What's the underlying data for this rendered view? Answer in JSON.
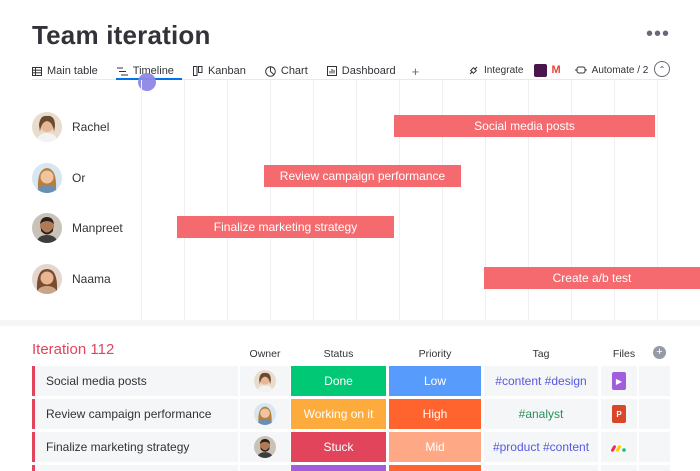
{
  "header": {
    "title": "Team iteration",
    "more_icon": "ellipsis-icon"
  },
  "tabs": [
    {
      "label": "Main table",
      "icon": "table-icon"
    },
    {
      "label": "Timeline",
      "icon": "timeline-icon",
      "active": true
    },
    {
      "label": "Kanban",
      "icon": "kanban-icon"
    },
    {
      "label": "Chart",
      "icon": "chart-icon"
    },
    {
      "label": "Dashboard",
      "icon": "dashboard-icon"
    }
  ],
  "add_view": "+",
  "toolbar": {
    "integrate_label": "Integrate",
    "automate_label": "Automate / 2"
  },
  "timeline": {
    "people": [
      {
        "name": "Rachel",
        "task": "Social media posts"
      },
      {
        "name": "Or",
        "task": "Review campaign performance"
      },
      {
        "name": "Manpreet",
        "task": "Finalize marketing strategy"
      },
      {
        "name": "Naama",
        "task": "Create a/b test"
      }
    ]
  },
  "group": {
    "title": "Iteration 112",
    "title_color": "#e2445c",
    "columns": {
      "owner": "Owner",
      "status": "Status",
      "priority": "Priority",
      "tag": "Tag",
      "files": "Files"
    },
    "add_column": "+",
    "rows": [
      {
        "name": "Social media posts",
        "status": "Done",
        "status_color": "#00c875",
        "priority": "Low",
        "priority_color": "#579bfc",
        "tag": "#content #design",
        "file": "video-file-icon"
      },
      {
        "name": "Review campaign performance",
        "status": "Working on it",
        "status_color": "#fdab3d",
        "priority": "High",
        "priority_color": "#ff642e",
        "tag": "#analyst",
        "file": "powerpoint-file-icon"
      },
      {
        "name": "Finalize marketing strategy",
        "status": "Stuck",
        "status_color": "#e2445c",
        "priority": "Mid",
        "priority_color": "#ffa886",
        "tag": "#product #content",
        "file": "monday-file-icon"
      }
    ]
  }
}
